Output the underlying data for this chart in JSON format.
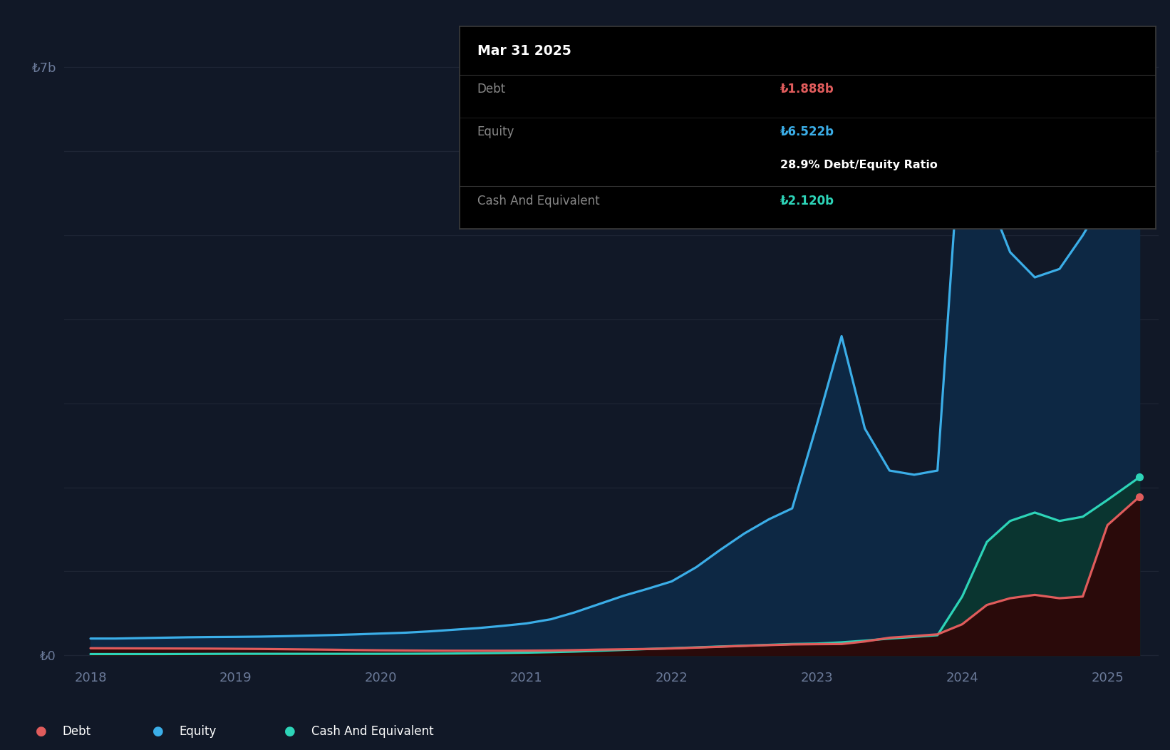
{
  "background_color": "#111827",
  "plot_bg_color": "#111827",
  "grid_color": "#1e2535",
  "axis_label_color": "#6b7a99",
  "debt_line_color": "#e05c5c",
  "equity_line_color": "#3baee8",
  "cash_line_color": "#2dd4b8",
  "equity_fill_color": "#0d2844",
  "cash_fill_color": "#0a3530",
  "debt_fill_color": "#2a0a0a",
  "tooltip_bg": "#000000",
  "tooltip_border": "#3a3a3a",
  "tooltip_title": "Mar 31 2025",
  "tooltip_debt_label": "Debt",
  "tooltip_debt_value": "₺1.888b",
  "tooltip_equity_label": "Equity",
  "tooltip_equity_value": "₺6.522b",
  "tooltip_ratio": "28.9% Debt/Equity Ratio",
  "tooltip_cash_label": "Cash And Equivalent",
  "tooltip_cash_value": "₺2.120b",
  "ytick_labels": [
    "₺0",
    "₺7b"
  ],
  "ytick_values": [
    0,
    7000000000
  ],
  "xtick_labels": [
    "2018",
    "2019",
    "2020",
    "2021",
    "2022",
    "2023",
    "2024",
    "2025"
  ],
  "xtick_values": [
    2018,
    2019,
    2020,
    2021,
    2022,
    2023,
    2024,
    2025
  ],
  "xmin": 2017.82,
  "xmax": 2025.35,
  "ymin": -100000000,
  "ymax": 7400000000,
  "dates": [
    2018.0,
    2018.17,
    2018.33,
    2018.5,
    2018.67,
    2018.83,
    2019.0,
    2019.17,
    2019.33,
    2019.5,
    2019.67,
    2019.83,
    2020.0,
    2020.17,
    2020.33,
    2020.5,
    2020.67,
    2020.83,
    2021.0,
    2021.17,
    2021.33,
    2021.5,
    2021.67,
    2021.83,
    2022.0,
    2022.17,
    2022.33,
    2022.5,
    2022.67,
    2022.83,
    2023.0,
    2023.17,
    2023.33,
    2023.5,
    2023.67,
    2023.83,
    2024.0,
    2024.17,
    2024.33,
    2024.5,
    2024.67,
    2024.83,
    2025.0,
    2025.22
  ],
  "equity": [
    200000000,
    200000000,
    205000000,
    210000000,
    215000000,
    218000000,
    220000000,
    223000000,
    228000000,
    235000000,
    242000000,
    250000000,
    260000000,
    270000000,
    285000000,
    305000000,
    325000000,
    350000000,
    380000000,
    430000000,
    510000000,
    610000000,
    710000000,
    790000000,
    880000000,
    1050000000,
    1250000000,
    1450000000,
    1620000000,
    1750000000,
    2750000000,
    3800000000,
    2700000000,
    2200000000,
    2150000000,
    2200000000,
    6500000000,
    5500000000,
    4800000000,
    4500000000,
    4600000000,
    5000000000,
    5500000000,
    6522000000
  ],
  "cash": [
    15000000,
    15000000,
    15000000,
    15000000,
    16000000,
    17000000,
    18000000,
    18000000,
    18000000,
    18000000,
    18000000,
    18000000,
    18000000,
    19000000,
    20000000,
    22000000,
    25000000,
    28000000,
    32000000,
    38000000,
    45000000,
    55000000,
    65000000,
    75000000,
    85000000,
    95000000,
    105000000,
    115000000,
    125000000,
    135000000,
    140000000,
    155000000,
    175000000,
    200000000,
    220000000,
    240000000,
    700000000,
    1350000000,
    1600000000,
    1700000000,
    1600000000,
    1650000000,
    1850000000,
    2120000000
  ],
  "debt": [
    85000000,
    84000000,
    83000000,
    82000000,
    81000000,
    80000000,
    78000000,
    76000000,
    73000000,
    70000000,
    67000000,
    63000000,
    60000000,
    58000000,
    56000000,
    55000000,
    55000000,
    55000000,
    56000000,
    58000000,
    62000000,
    68000000,
    72000000,
    76000000,
    82000000,
    92000000,
    102000000,
    113000000,
    122000000,
    130000000,
    133000000,
    135000000,
    165000000,
    210000000,
    230000000,
    250000000,
    370000000,
    600000000,
    680000000,
    720000000,
    680000000,
    700000000,
    1550000000,
    1888000000
  ]
}
